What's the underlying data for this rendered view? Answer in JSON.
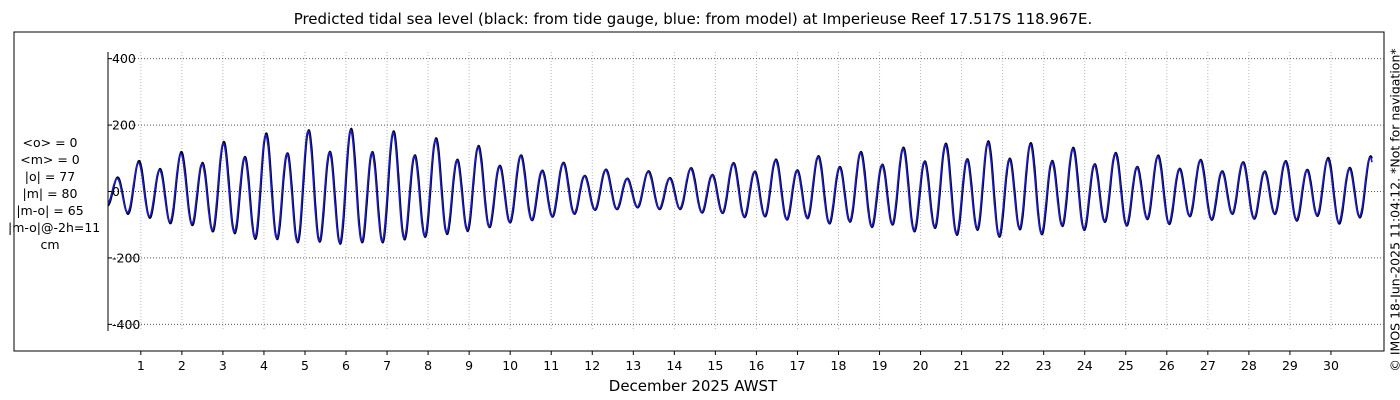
{
  "chart_data": {
    "type": "line",
    "title": "Predicted tidal sea level (black: from tide gauge, blue: from model) at Imperieuse Reef 17.517S 118.967E.",
    "xlabel": "December 2025 AWST",
    "ylabel": "",
    "xlim": [
      0.2,
      31.0
    ],
    "ylim": [
      -420,
      420
    ],
    "yticks": [
      400,
      200,
      0,
      -200,
      -400
    ],
    "yticklabels": [
      "400",
      "200",
      "0",
      "-200",
      "-400"
    ],
    "xticks": [
      1,
      2,
      3,
      4,
      5,
      6,
      7,
      8,
      9,
      10,
      11,
      12,
      13,
      14,
      15,
      16,
      17,
      18,
      19,
      20,
      21,
      22,
      23,
      24,
      25,
      26,
      27,
      28,
      29,
      30
    ],
    "xticklabels": [
      "1",
      "2",
      "3",
      "4",
      "5",
      "6",
      "7",
      "8",
      "9",
      "10",
      "11",
      "12",
      "13",
      "14",
      "15",
      "16",
      "17",
      "18",
      "19",
      "20",
      "21",
      "22",
      "23",
      "24",
      "25",
      "26",
      "27",
      "28",
      "29",
      "30"
    ],
    "grid": true,
    "units": "cm",
    "series": [
      {
        "color": "#000000",
        "amplitude_envelope": {
          "day": [
            0.2,
            1,
            2,
            3,
            4,
            5,
            6,
            7,
            8,
            9,
            10,
            11,
            12,
            13,
            14,
            15,
            16,
            17,
            18,
            19,
            20,
            21,
            22,
            23,
            24,
            25,
            26,
            27,
            28,
            29,
            30,
            31
          ],
          "amplitude": [
            55,
            95,
            120,
            150,
            175,
            185,
            190,
            185,
            165,
            145,
            115,
            95,
            70,
            60,
            65,
            80,
            95,
            100,
            115,
            125,
            140,
            150,
            155,
            145,
            130,
            115,
            110,
            95,
            90,
            95,
            105,
            110
          ]
        }
      },
      {
        "color": "#1a1acc",
        "amplitude_envelope": {
          "day": [
            0.2,
            1,
            2,
            3,
            4,
            5,
            6,
            7,
            8,
            9,
            10,
            11,
            12,
            13,
            14,
            15,
            16,
            17,
            18,
            19,
            20,
            21,
            22,
            23,
            24,
            25,
            26,
            27,
            28,
            29,
            30,
            31
          ],
          "amplitude": [
            50,
            90,
            115,
            145,
            170,
            182,
            185,
            180,
            160,
            140,
            112,
            92,
            68,
            58,
            62,
            78,
            92,
            98,
            112,
            122,
            136,
            146,
            150,
            140,
            126,
            112,
            106,
            92,
            88,
            92,
            100,
            106
          ]
        }
      }
    ]
  },
  "stats": [
    "<o> = 0",
    "<m> = 0",
    "|o| = 77",
    "|m| = 80",
    "|m-o| = 65",
    "|m-o|@-2h=11",
    "cm"
  ],
  "copyright": "© IMOS 18-Jun-2025 11:04:12. *Not for navigation*"
}
